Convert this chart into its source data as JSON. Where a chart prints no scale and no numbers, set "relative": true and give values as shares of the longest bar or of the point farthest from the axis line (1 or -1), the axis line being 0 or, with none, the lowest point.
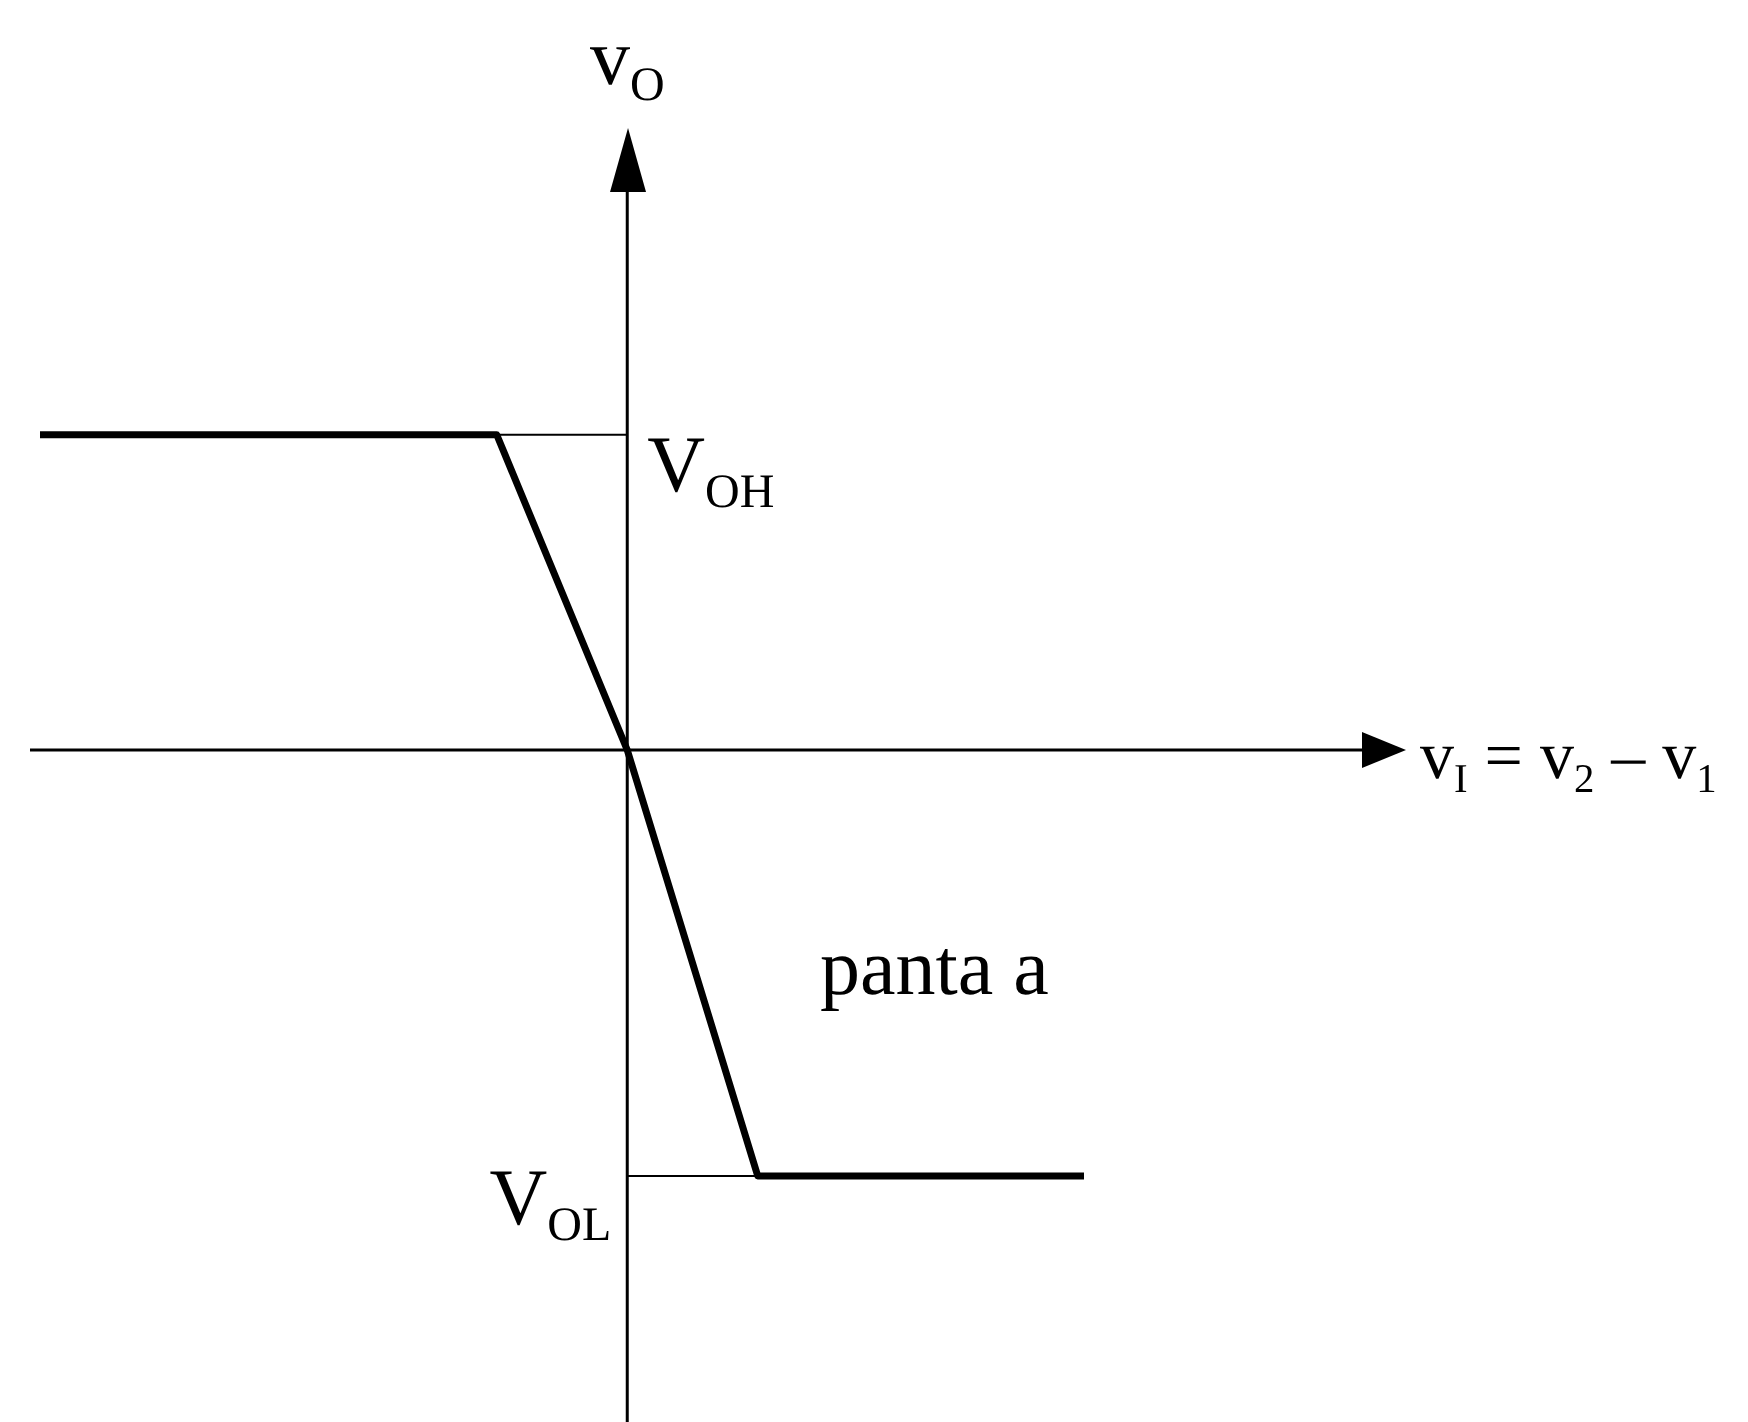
{
  "chart_data": {
    "type": "line",
    "relative": true,
    "xlabel": "v$_{I}$ = v$_{2}$ – v$_{1}$",
    "ylabel": "v$_{O}$",
    "categories": [
      null,
      null,
      null,
      null,
      null,
      null,
      null,
      null,
      null,
      null,
      null,
      null,
      null,
      null,
      null,
      null,
      null
    ],
    "series": [
      {
        "color": "#000000",
        "values": [
          0.74,
          null,
          null,
          null,
          null,
          null,
          null,
          0.74,
          null,
          0,
          null,
          -1,
          null,
          null,
          null,
          null,
          -1
        ]
      }
    ],
    "ref_lines": [
      {
        "axis": "y",
        "value": 0.74,
        "label": "V$_{OH}$",
        "color": "#000000"
      },
      {
        "axis": "y",
        "value": -1,
        "label": "V$_{OL}$",
        "color": "#000000"
      }
    ],
    "annotations": [
      "panta a"
    ],
    "legend": false,
    "marker": "none",
    "line_style": "solid"
  }
}
